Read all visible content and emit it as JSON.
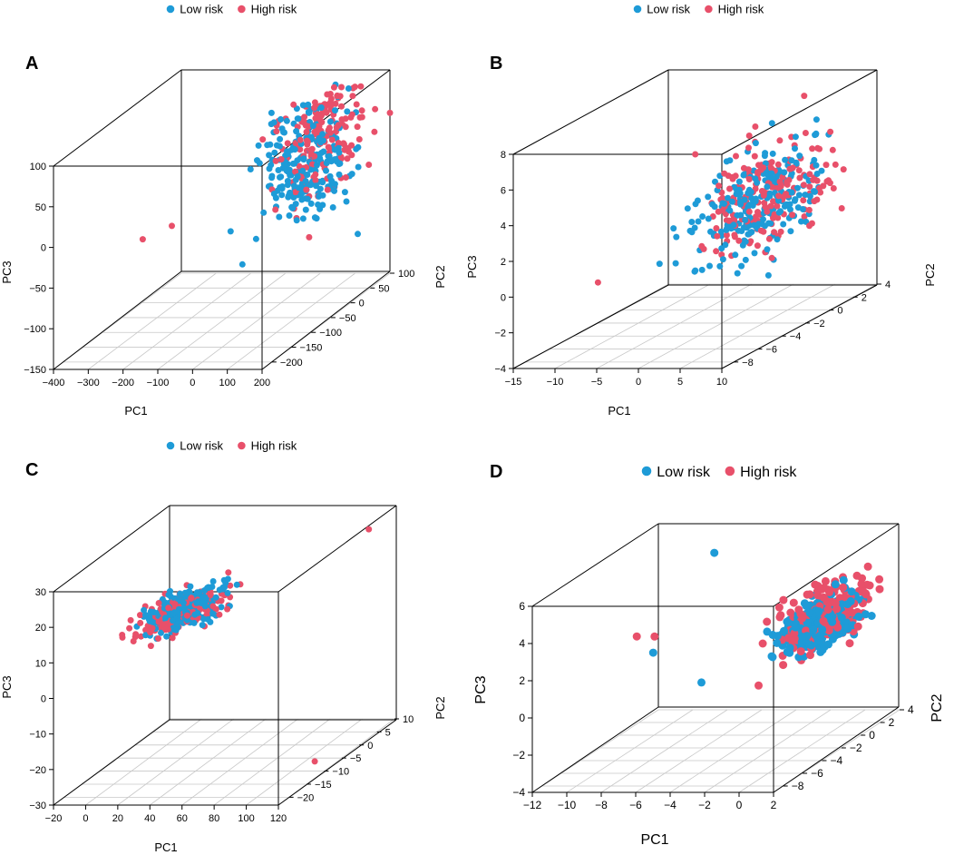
{
  "figure": {
    "legend": {
      "low_label": "Low risk",
      "high_label": "High risk"
    },
    "colors": {
      "low": "#1E9BD7",
      "high": "#E8506A",
      "box": "#000000",
      "grid": "#C8C8C8"
    }
  },
  "chart_data": [
    {
      "type": "scatter3d",
      "panel": "A",
      "xlabel": "PC1",
      "ylabel": "PC2",
      "zlabel": "PC3",
      "x_ticks": [
        -400,
        -300,
        -200,
        -100,
        0,
        100,
        200
      ],
      "y_ticks": [
        -200,
        -150,
        -100,
        -50,
        0,
        50,
        100
      ],
      "z_ticks": [
        -150,
        -100,
        -50,
        0,
        50,
        100
      ],
      "xlim": [
        -400,
        200
      ],
      "ylim": [
        -225,
        100
      ],
      "zlim": [
        -150,
        100
      ],
      "series": [
        {
          "name": "Low risk",
          "center": [
            120,
            -40,
            40
          ],
          "spread": [
            42,
            45,
            32
          ],
          "n": 230,
          "outliers": [
            [
              115,
              -200,
              -30
            ],
            [
              100,
              50,
              100
            ]
          ]
        },
        {
          "name": "High risk",
          "center": [
            125,
            -5,
            55
          ],
          "spread": [
            42,
            50,
            35
          ],
          "n": 170,
          "outliers": [
            [
              -330,
              -60,
              -50
            ],
            [
              -235,
              -70,
              -30
            ]
          ]
        }
      ]
    },
    {
      "type": "scatter3d",
      "panel": "B",
      "xlabel": "PC1",
      "ylabel": "PC2",
      "zlabel": "PC3",
      "x_ticks": [
        -15,
        -10,
        -5,
        0,
        5,
        10
      ],
      "y_ticks": [
        -8,
        -6,
        -4,
        -2,
        0,
        2,
        4
      ],
      "z_ticks": [
        -4,
        -2,
        0,
        2,
        4,
        6,
        8
      ],
      "xlim": [
        -15,
        10
      ],
      "ylim": [
        -9,
        4
      ],
      "zlim": [
        -4,
        8
      ],
      "series": [
        {
          "name": "Low risk",
          "center": [
            5.5,
            -3,
            3
          ],
          "spread": [
            2.3,
            2.2,
            1.4
          ],
          "n": 230,
          "outliers": [
            [
              6,
              -2,
              7.2
            ],
            [
              3,
              -4,
              0.3
            ]
          ]
        },
        {
          "name": "High risk",
          "center": [
            6,
            -2.5,
            3.2
          ],
          "spread": [
            2.3,
            2.2,
            1.4
          ],
          "n": 190,
          "outliers": [
            [
              -12,
              -4,
              -1
            ],
            [
              4,
              -4,
              0.5
            ],
            [
              7,
              0,
              8
            ]
          ]
        }
      ]
    },
    {
      "type": "scatter3d",
      "panel": "C",
      "xlabel": "PC1",
      "ylabel": "PC2",
      "zlabel": "PC3",
      "x_ticks": [
        -20,
        0,
        20,
        40,
        60,
        80,
        100,
        120
      ],
      "y_ticks": [
        -20,
        -15,
        -10,
        -5,
        0,
        5,
        10
      ],
      "z_ticks": [
        -30,
        -20,
        -10,
        0,
        10,
        20,
        30
      ],
      "xlim": [
        -20,
        120
      ],
      "ylim": [
        -23,
        10
      ],
      "zlim": [
        -30,
        30
      ],
      "series": [
        {
          "name": "Low risk",
          "center": [
            26,
            -6,
            13
          ],
          "spread": [
            9,
            4,
            1.8
          ],
          "n": 230,
          "outliers": []
        },
        {
          "name": "High risk",
          "center": [
            24,
            -7,
            12.5
          ],
          "spread": [
            9,
            4,
            1.8
          ],
          "n": 160,
          "outliers": [
            [
              115,
              5,
              27
            ],
            [
              112,
              -9,
              -28
            ]
          ]
        }
      ]
    },
    {
      "type": "scatter3d",
      "panel": "D",
      "xlabel": "PC1",
      "ylabel": "PC2",
      "zlabel": "PC3",
      "x_ticks": [
        -12,
        -10,
        -8,
        -6,
        -4,
        -2,
        0,
        2
      ],
      "y_ticks": [
        -8,
        -6,
        -4,
        -2,
        0,
        2,
        4
      ],
      "z_ticks": [
        -4,
        -2,
        0,
        2,
        4,
        6
      ],
      "xlim": [
        -12,
        2
      ],
      "ylim": [
        -9,
        4
      ],
      "zlim": [
        -4,
        6
      ],
      "series": [
        {
          "name": "Low risk",
          "center": [
            1,
            -2.5,
            2.8
          ],
          "spread": [
            0.9,
            1.6,
            0.55
          ],
          "n": 260,
          "outliers": [
            [
              -6.5,
              0,
              5.8
            ],
            [
              -7.8,
              -4,
              1.8
            ],
            [
              -5,
              -4,
              0.2
            ]
          ]
        },
        {
          "name": "High risk",
          "center": [
            1.1,
            -1.8,
            3.0
          ],
          "spread": [
            1.0,
            1.8,
            0.8
          ],
          "n": 190,
          "outliers": [
            [
              -9.2,
              -3.2,
              2.4
            ],
            [
              -8,
              -3.5,
              2.5
            ]
          ]
        }
      ]
    }
  ]
}
